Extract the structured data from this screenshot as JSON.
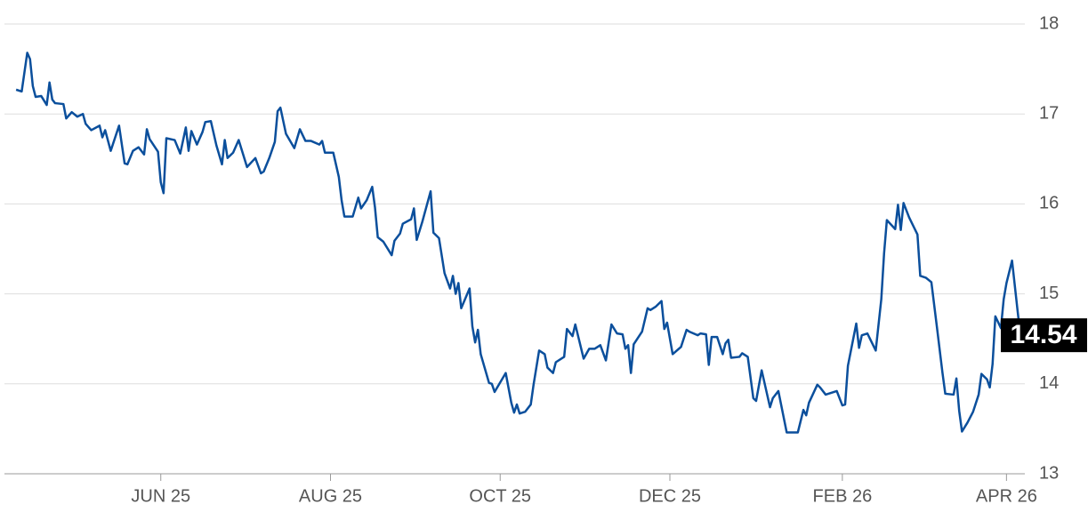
{
  "chart_data": {
    "type": "line",
    "x": [
      1,
      3,
      5,
      6,
      7,
      8,
      10,
      12,
      13,
      14,
      15,
      18,
      19,
      21,
      23,
      25,
      26,
      28,
      31,
      32,
      33,
      35,
      38,
      40,
      41,
      43,
      45,
      47,
      48,
      49,
      52,
      53,
      54,
      55,
      58,
      60,
      62,
      63,
      64,
      66,
      68,
      69,
      71,
      73,
      75,
      76,
      77,
      79,
      81,
      84,
      87,
      89,
      90,
      92,
      94,
      95,
      96,
      98,
      101,
      103,
      105,
      107,
      110,
      111,
      112,
      115,
      117,
      118,
      119,
      122,
      124,
      125,
      127,
      129,
      130,
      131,
      133,
      136,
      137,
      139,
      140,
      143,
      144,
      145,
      147,
      150,
      151,
      153,
      155,
      157,
      158,
      159,
      160,
      161,
      164,
      165,
      166,
      167,
      168,
      171,
      172,
      173,
      177,
      179,
      180,
      181,
      182,
      184,
      186,
      187,
      189,
      191,
      192,
      194,
      195,
      198,
      199,
      201,
      202,
      205,
      207,
      209,
      211,
      213,
      215,
      217,
      219,
      220,
      221,
      222,
      223,
      226,
      228,
      229,
      231,
      233,
      234,
      235,
      237,
      240,
      242,
      243,
      246,
      247,
      249,
      250,
      251,
      253,
      255,
      256,
      257,
      258,
      261,
      262,
      264,
      266,
      267,
      269,
      272,
      273,
      275,
      278,
      282,
      284,
      285,
      286,
      289,
      290,
      292,
      296,
      298,
      299,
      300,
      303,
      304,
      305,
      307,
      310,
      312,
      313,
      314,
      317,
      318,
      319,
      320,
      322,
      325,
      326,
      328,
      330,
      332,
      334,
      335,
      338,
      339,
      340,
      341,
      343,
      345,
      347,
      348,
      350,
      351,
      352,
      353,
      355,
      356,
      357,
      359,
      361,
      362
    ],
    "series": [
      {
        "color": "#0b4f9c",
        "values": [
          17.27,
          17.25,
          17.68,
          17.61,
          17.31,
          17.19,
          17.2,
          17.1,
          17.35,
          17.16,
          17.12,
          17.11,
          16.95,
          17.02,
          16.97,
          17.0,
          16.89,
          16.82,
          16.87,
          16.74,
          16.82,
          16.59,
          16.87,
          16.45,
          16.44,
          16.59,
          16.63,
          16.55,
          16.83,
          16.72,
          16.58,
          16.24,
          16.12,
          16.73,
          16.71,
          16.56,
          16.85,
          16.59,
          16.81,
          16.66,
          16.8,
          16.91,
          16.92,
          16.65,
          16.44,
          16.71,
          16.51,
          16.57,
          16.71,
          16.41,
          16.51,
          16.34,
          16.36,
          16.51,
          16.69,
          17.03,
          17.07,
          16.78,
          16.62,
          16.83,
          16.7,
          16.7,
          16.66,
          16.7,
          16.57,
          16.57,
          16.3,
          16.04,
          15.86,
          15.86,
          16.07,
          15.95,
          16.04,
          16.19,
          15.96,
          15.63,
          15.58,
          15.43,
          15.59,
          15.67,
          15.78,
          15.83,
          15.95,
          15.6,
          15.8,
          16.14,
          15.68,
          15.62,
          15.23,
          15.06,
          15.2,
          15.0,
          15.12,
          14.84,
          15.06,
          14.64,
          14.46,
          14.6,
          14.33,
          14.01,
          14.0,
          13.91,
          14.12,
          13.79,
          13.68,
          13.77,
          13.67,
          13.69,
          13.77,
          13.99,
          14.37,
          14.33,
          14.18,
          14.12,
          14.24,
          14.3,
          14.61,
          14.53,
          14.66,
          14.28,
          14.39,
          14.39,
          14.43,
          14.26,
          14.66,
          14.56,
          14.55,
          14.39,
          14.43,
          14.12,
          14.44,
          14.58,
          14.84,
          14.82,
          14.86,
          14.92,
          14.61,
          14.68,
          14.33,
          14.41,
          14.6,
          14.58,
          14.54,
          14.56,
          14.55,
          14.21,
          14.52,
          14.52,
          14.33,
          14.45,
          14.49,
          14.29,
          14.3,
          14.34,
          14.3,
          13.84,
          13.81,
          14.15,
          13.74,
          13.84,
          13.92,
          13.46,
          13.46,
          13.71,
          13.65,
          13.79,
          13.99,
          13.96,
          13.88,
          13.92,
          13.76,
          13.77,
          14.2,
          14.67,
          14.4,
          14.54,
          14.56,
          14.37,
          14.94,
          15.45,
          15.82,
          15.72,
          15.99,
          15.71,
          16.01,
          15.85,
          15.66,
          15.2,
          15.18,
          15.13,
          14.63,
          14.12,
          13.89,
          13.88,
          14.06,
          13.7,
          13.47,
          13.57,
          13.69,
          13.88,
          14.11,
          14.05,
          13.96,
          14.22,
          14.75,
          14.62,
          14.94,
          15.12,
          15.37,
          14.81,
          14.54
        ]
      }
    ],
    "xlim": [
      0,
      362
    ],
    "xticks": [
      {
        "value": 53,
        "label": "JUN 25"
      },
      {
        "value": 114,
        "label": "AUG 25"
      },
      {
        "value": 175,
        "label": "OCT 25"
      },
      {
        "value": 236,
        "label": "DEC 25"
      },
      {
        "value": 298,
        "label": "FEB 26"
      },
      {
        "value": 357,
        "label": "APR 26"
      }
    ],
    "ylim": [
      13,
      18
    ],
    "yticks": [
      13,
      14,
      15,
      16,
      17,
      18
    ],
    "grid": true
  }
}
